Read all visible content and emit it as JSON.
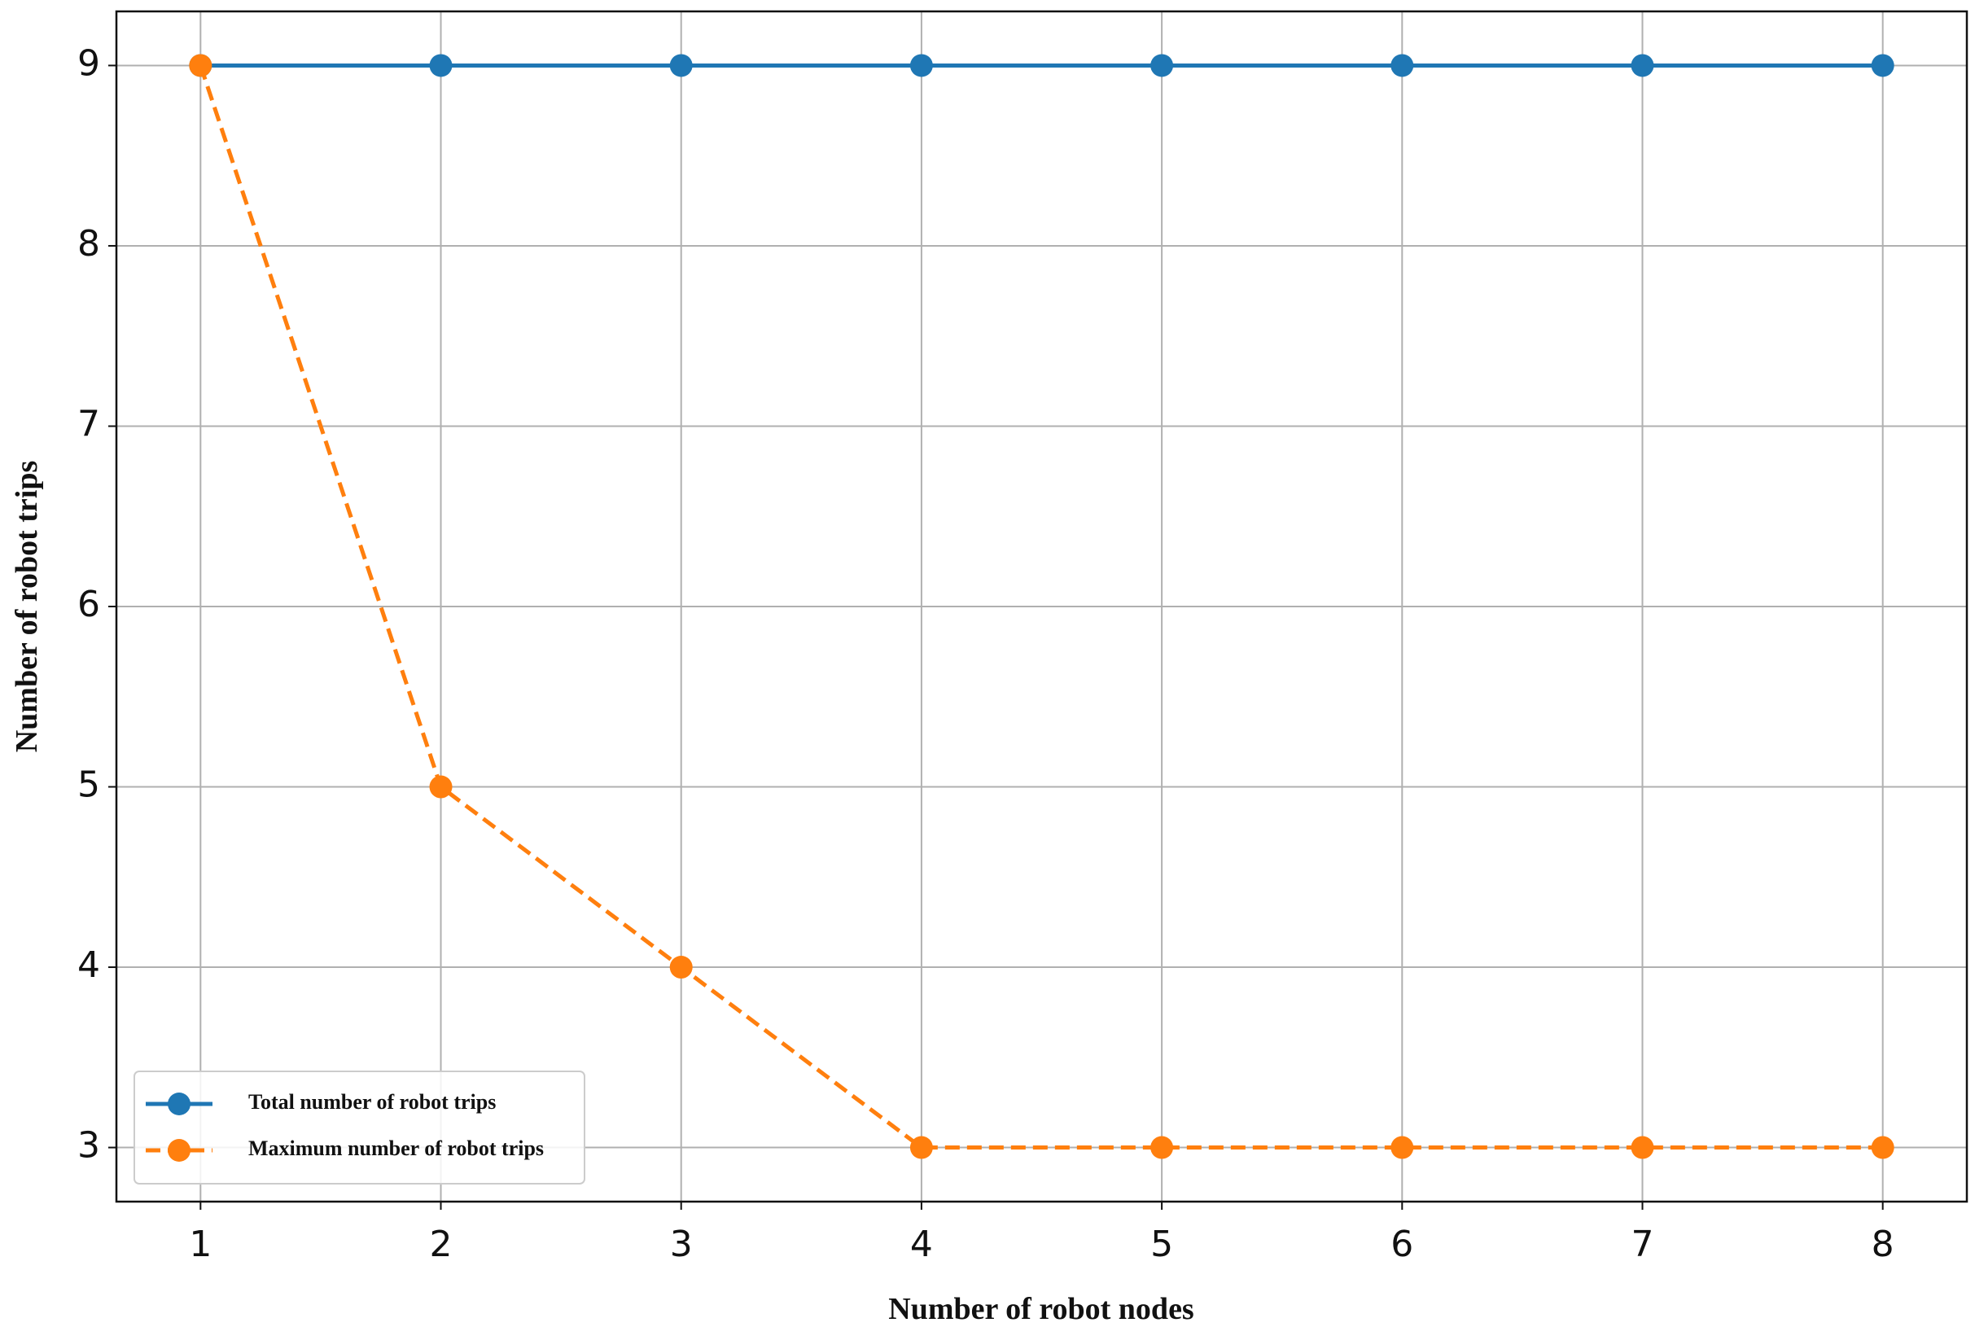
{
  "chart_data": {
    "type": "line",
    "x_label": "Number of robot nodes",
    "y_label": "Number of robot trips",
    "x": [
      1,
      2,
      3,
      4,
      5,
      6,
      7,
      8
    ],
    "series": [
      {
        "name": "Total number of robot trips",
        "color": "#1f77b4",
        "linestyle": "solid",
        "values": [
          9,
          9,
          9,
          9,
          9,
          9,
          9,
          9
        ]
      },
      {
        "name": "Maximum number of robot trips",
        "color": "#ff7f0e",
        "linestyle": "dashed",
        "values": [
          9,
          5,
          4,
          3,
          3,
          3,
          3,
          3
        ]
      }
    ],
    "xlim": [
      0.65,
      8.35
    ],
    "ylim": [
      2.7,
      9.3
    ],
    "xticks": [
      1,
      2,
      3,
      4,
      5,
      6,
      7,
      8
    ],
    "yticks": [
      3,
      4,
      5,
      6,
      7,
      8,
      9
    ],
    "grid": true,
    "legend": "lower left"
  }
}
